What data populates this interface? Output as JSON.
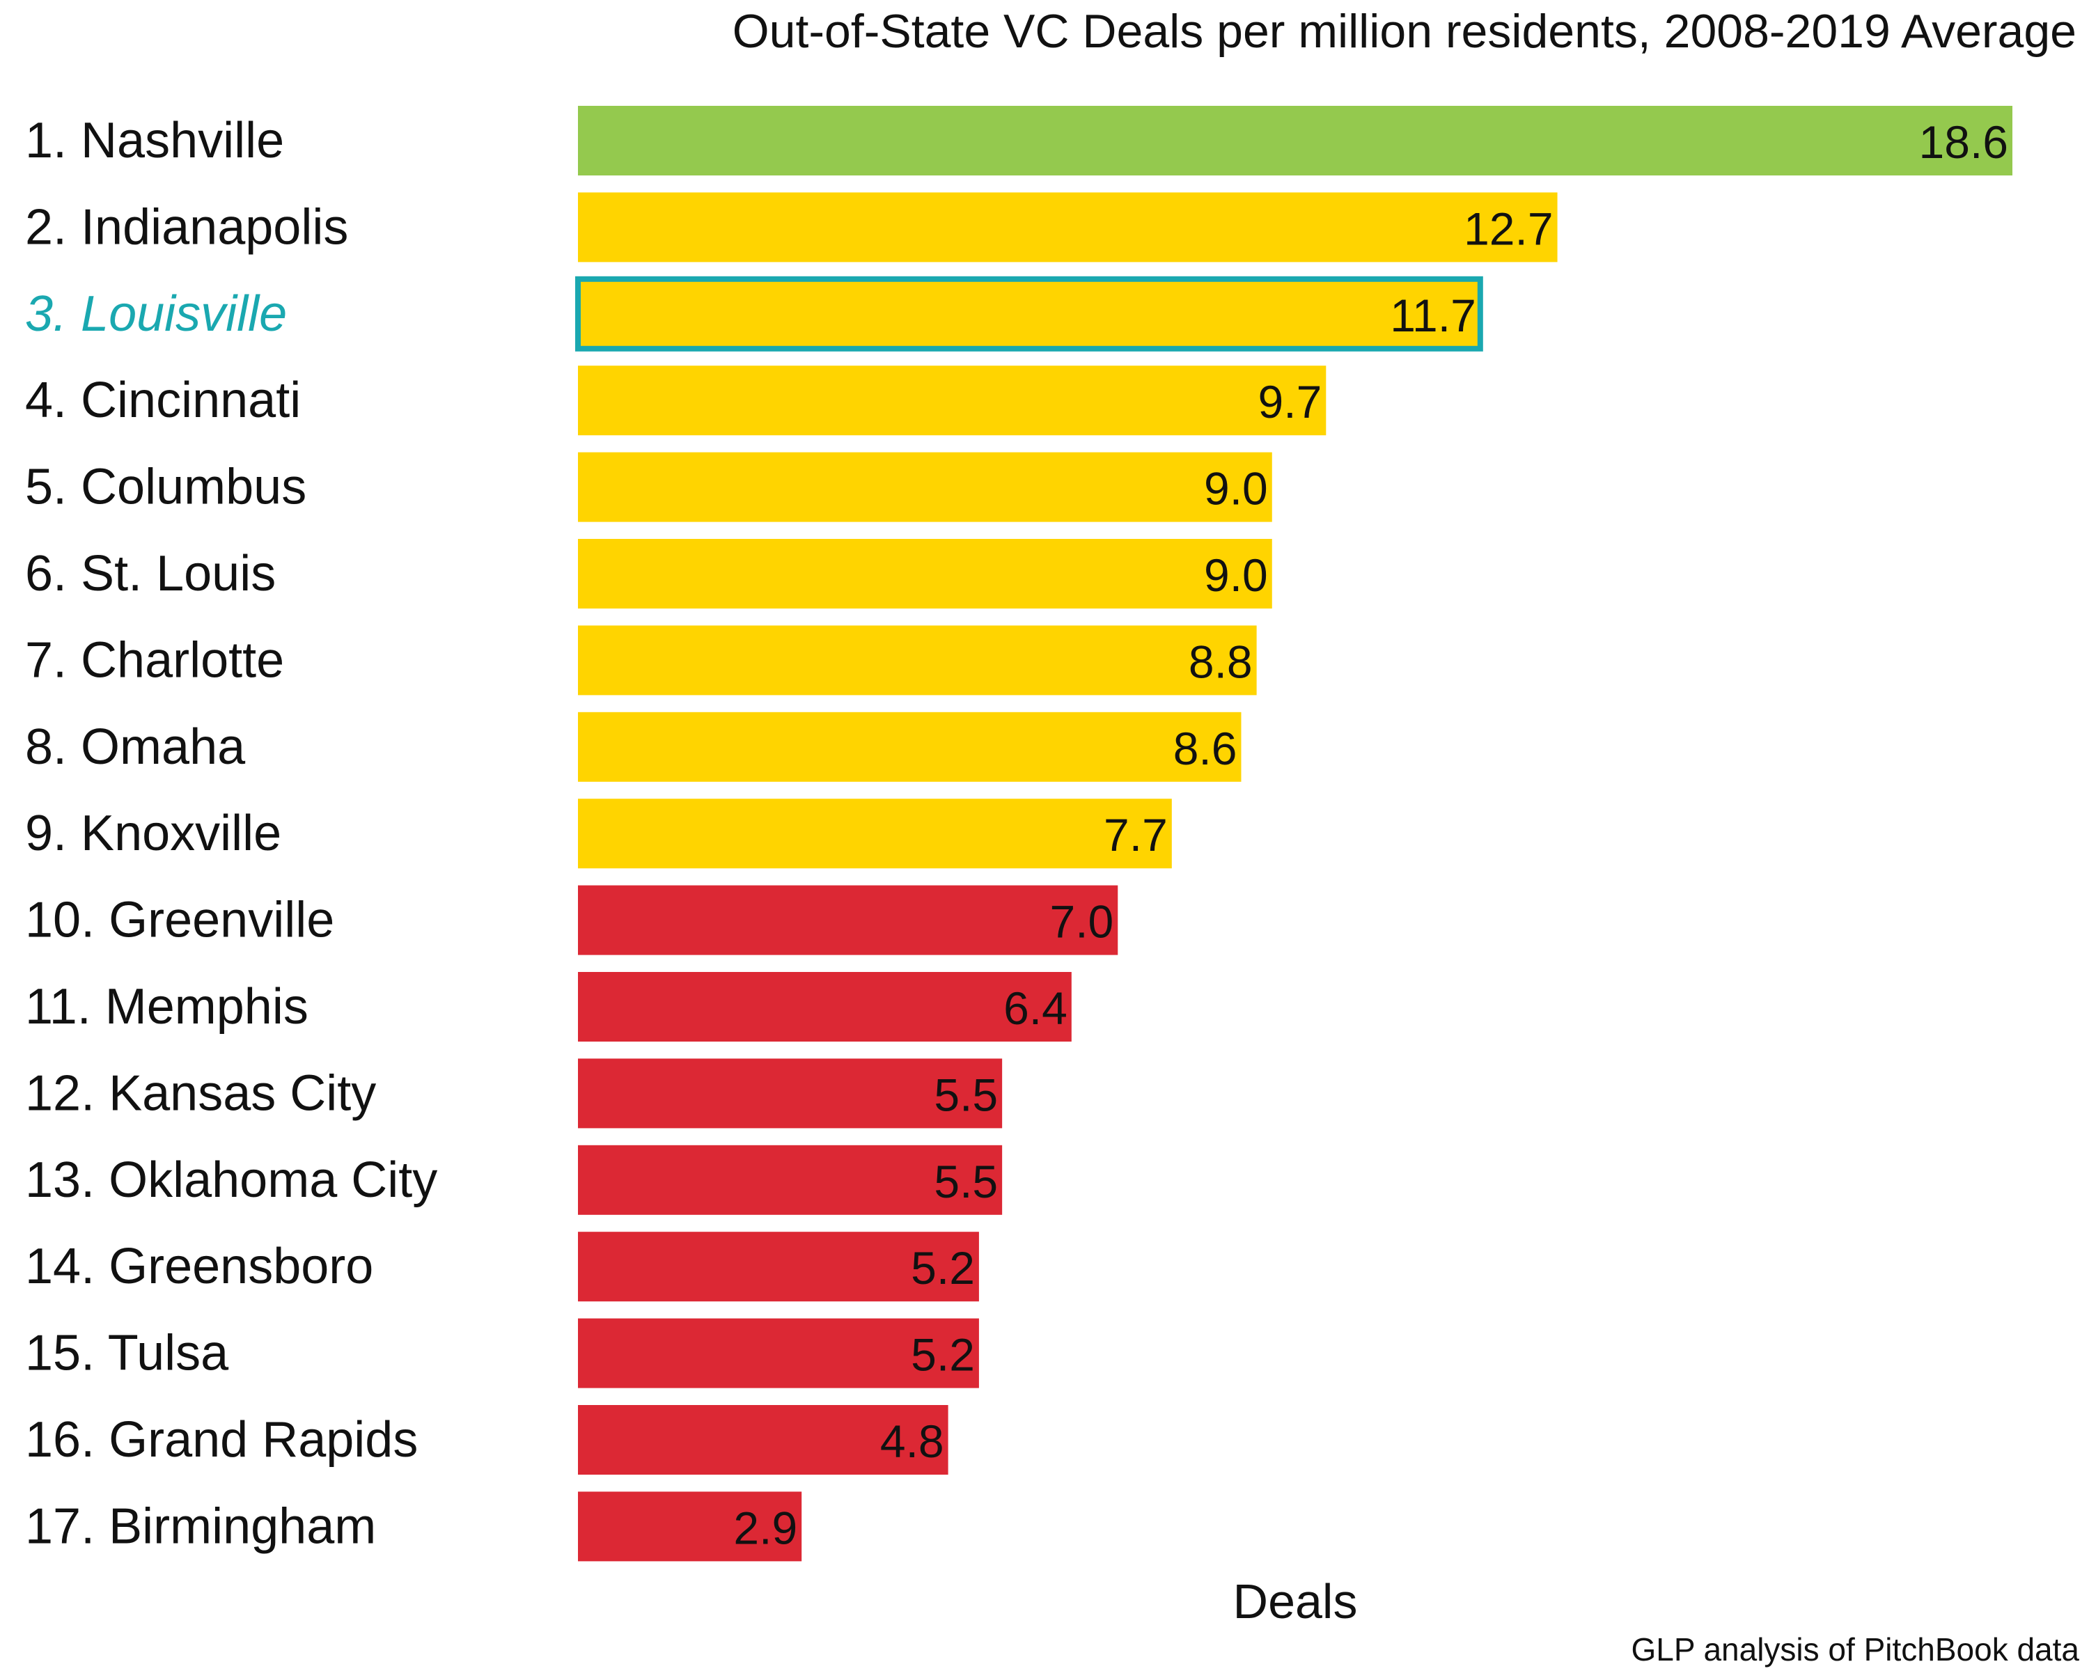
{
  "chart_data": {
    "type": "bar",
    "orientation": "horizontal",
    "title": "Out-of-State VC Deals per million residents, 2008-2019 Average",
    "xlabel": "Deals",
    "ylabel": "",
    "source": "GLP analysis of PitchBook data",
    "xlim": [
      0,
      18.6
    ],
    "grid": false,
    "legend": "none",
    "categories": [
      "1. Nashville",
      "2. Indianapolis",
      "3. Louisville",
      "4. Cincinnati",
      "5. Columbus",
      "6. St. Louis",
      "7. Charlotte",
      "8. Omaha",
      "9. Knoxville",
      "10. Greenville",
      "11. Memphis",
      "12. Kansas City",
      "13. Oklahoma City",
      "14. Greensboro",
      "15. Tulsa",
      "16. Grand Rapids",
      "17. Birmingham"
    ],
    "values": [
      18.6,
      12.7,
      11.7,
      9.7,
      9.0,
      9.0,
      8.8,
      8.6,
      7.7,
      7.0,
      6.4,
      5.5,
      5.5,
      5.2,
      5.2,
      4.8,
      2.9
    ],
    "value_labels": [
      "18.6",
      "12.7",
      "11.7",
      "9.7",
      "9.0",
      "9.0",
      "8.8",
      "8.6",
      "7.7",
      "7.0",
      "6.4",
      "5.5",
      "5.5",
      "5.2",
      "5.2",
      "4.8",
      "2.9"
    ],
    "bar_colors": [
      "#94c94e",
      "#ffd400",
      "#ffd400",
      "#ffd400",
      "#ffd400",
      "#ffd400",
      "#ffd400",
      "#ffd400",
      "#ffd400",
      "#dc2834",
      "#dc2834",
      "#dc2834",
      "#dc2834",
      "#dc2834",
      "#dc2834",
      "#dc2834",
      "#dc2834"
    ],
    "highlight": {
      "category": "3. Louisville",
      "outline_color": "#1aa8b0",
      "label_color": "#1aa8b0"
    }
  }
}
